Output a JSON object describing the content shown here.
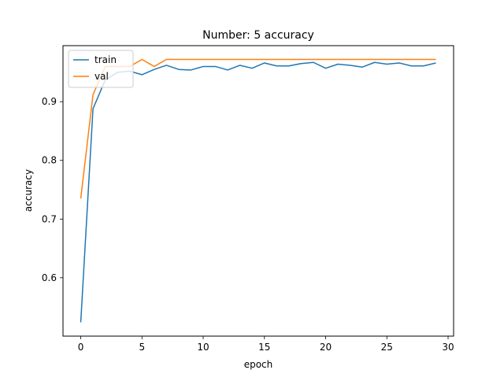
{
  "chart_data": {
    "type": "line",
    "title": "Number: 5 accuracy",
    "xlabel": "epoch",
    "ylabel": "accuracy",
    "xlim": [
      -1.45,
      30.45
    ],
    "ylim": [
      0.5005,
      0.9955
    ],
    "xticks": [
      0,
      5,
      10,
      15,
      20,
      25,
      30
    ],
    "yticks": [
      0.6,
      0.7,
      0.8,
      0.9
    ],
    "grid": false,
    "legend_position": "top-left",
    "x": [
      0,
      1,
      2,
      3,
      4,
      5,
      6,
      7,
      8,
      9,
      10,
      11,
      12,
      13,
      14,
      15,
      16,
      17,
      18,
      19,
      20,
      21,
      22,
      23,
      24,
      25,
      26,
      27,
      28,
      29
    ],
    "series": [
      {
        "name": "train",
        "color": "#1f77b4",
        "values": [
          0.524,
          0.888,
          0.937,
          0.95,
          0.952,
          0.946,
          0.955,
          0.962,
          0.955,
          0.954,
          0.96,
          0.96,
          0.954,
          0.962,
          0.957,
          0.966,
          0.961,
          0.961,
          0.965,
          0.967,
          0.957,
          0.964,
          0.962,
          0.959,
          0.967,
          0.964,
          0.966,
          0.961,
          0.961,
          0.966
        ]
      },
      {
        "name": "val",
        "color": "#ff7f0e",
        "values": [
          0.735,
          0.912,
          0.96,
          0.96,
          0.96,
          0.972,
          0.96,
          0.972,
          0.972,
          0.972,
          0.972,
          0.972,
          0.972,
          0.972,
          0.972,
          0.972,
          0.972,
          0.972,
          0.972,
          0.972,
          0.972,
          0.972,
          0.972,
          0.972,
          0.972,
          0.972,
          0.972,
          0.972,
          0.972,
          0.972
        ]
      }
    ]
  }
}
